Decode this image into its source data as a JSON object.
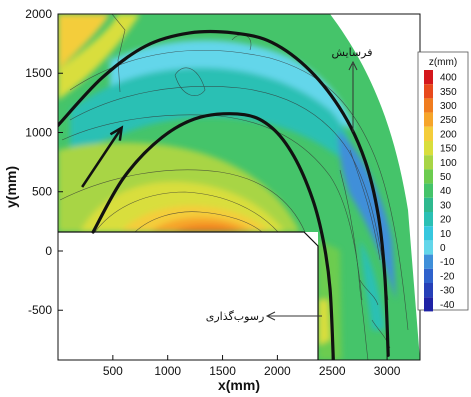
{
  "chart_data": {
    "type": "heatmap",
    "title": "",
    "xlabel": "x(mm)",
    "ylabel": "y(mm)",
    "xlim": [
      0,
      3300
    ],
    "ylim": [
      -920,
      2000
    ],
    "x_ticks": [
      "500",
      "1000",
      "1500",
      "2000",
      "2500",
      "3000"
    ],
    "y_ticks": [
      "2000",
      "1500",
      "1000",
      "500",
      "0",
      "-500"
    ],
    "colorbar": {
      "title": "z(mm)",
      "labels": [
        "400",
        "350",
        "300",
        "250",
        "200",
        "150",
        "100",
        "50",
        "40",
        "30",
        "20",
        "10",
        "0",
        "-10",
        "-20",
        "-30",
        "-40"
      ],
      "colors": [
        "#d4171c",
        "#e8491c",
        "#f07c1f",
        "#f6a52a",
        "#f4cd3b",
        "#d9de3c",
        "#a8d545",
        "#6ccc4f",
        "#45c46a",
        "#2fb98e",
        "#2ac0b4",
        "#36c7de",
        "#63d6ea",
        "#3f8fd9",
        "#2f62cc",
        "#2640b8",
        "#1f22a5"
      ]
    },
    "annotations": [
      {
        "text": "فرسایش",
        "x": 2600,
        "y": 1620,
        "direction": "up"
      },
      {
        "text": "رسوب‌گذاری",
        "x": 1950,
        "y": -560,
        "direction": "left"
      }
    ],
    "bank_lines": [
      {
        "name": "outer",
        "points": [
          [
            0,
            1060
          ],
          [
            400,
            1460
          ],
          [
            800,
            1730
          ],
          [
            1200,
            1840
          ],
          [
            1600,
            1840
          ],
          [
            1950,
            1760
          ],
          [
            2300,
            1520
          ],
          [
            2600,
            1160
          ],
          [
            2800,
            760
          ],
          [
            2920,
            300
          ],
          [
            2980,
            -220
          ],
          [
            3010,
            -880
          ]
        ]
      },
      {
        "name": "inner",
        "points": [
          [
            320,
            160
          ],
          [
            600,
            620
          ],
          [
            950,
            960
          ],
          [
            1300,
            1130
          ],
          [
            1700,
            1150
          ],
          [
            1950,
            1040
          ],
          [
            2150,
            800
          ],
          [
            2320,
            440
          ],
          [
            2420,
            80
          ],
          [
            2480,
            -320
          ],
          [
            2510,
            -920
          ]
        ]
      }
    ],
    "flow_arrow": {
      "from": [
        220,
        540
      ],
      "to": [
        580,
        1040
      ]
    }
  }
}
